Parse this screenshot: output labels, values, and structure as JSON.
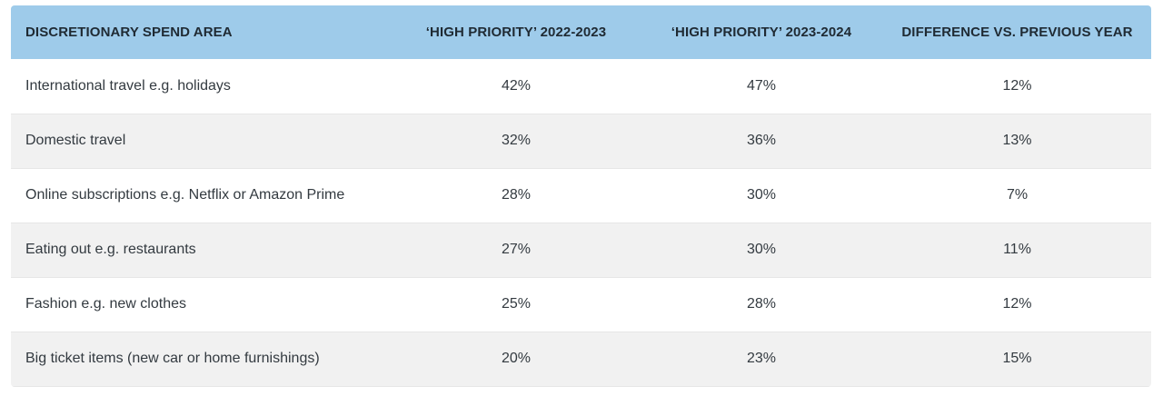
{
  "table": {
    "headers": [
      "DISCRETIONARY SPEND AREA",
      "‘HIGH PRIORITY’ 2022-2023",
      "‘HIGH PRIORITY’ 2023-2024",
      "DIFFERENCE VS. PREVIOUS YEAR"
    ],
    "rows": [
      [
        "International travel e.g. holidays",
        "42%",
        "47%",
        "12%"
      ],
      [
        "Domestic travel",
        "32%",
        "36%",
        "13%"
      ],
      [
        "Online subscriptions e.g. Netflix or Amazon Prime",
        "28%",
        "30%",
        "7%"
      ],
      [
        "Eating out e.g. restaurants",
        "27%",
        "30%",
        "11%"
      ],
      [
        "Fashion e.g. new clothes",
        "25%",
        "28%",
        "12%"
      ],
      [
        "Big ticket items (new car or home furnishings)",
        "20%",
        "23%",
        "15%"
      ]
    ]
  },
  "colors": {
    "header_bg": "#9ecbea",
    "row_alt_bg": "#f1f1f1",
    "text": "#333a40"
  }
}
